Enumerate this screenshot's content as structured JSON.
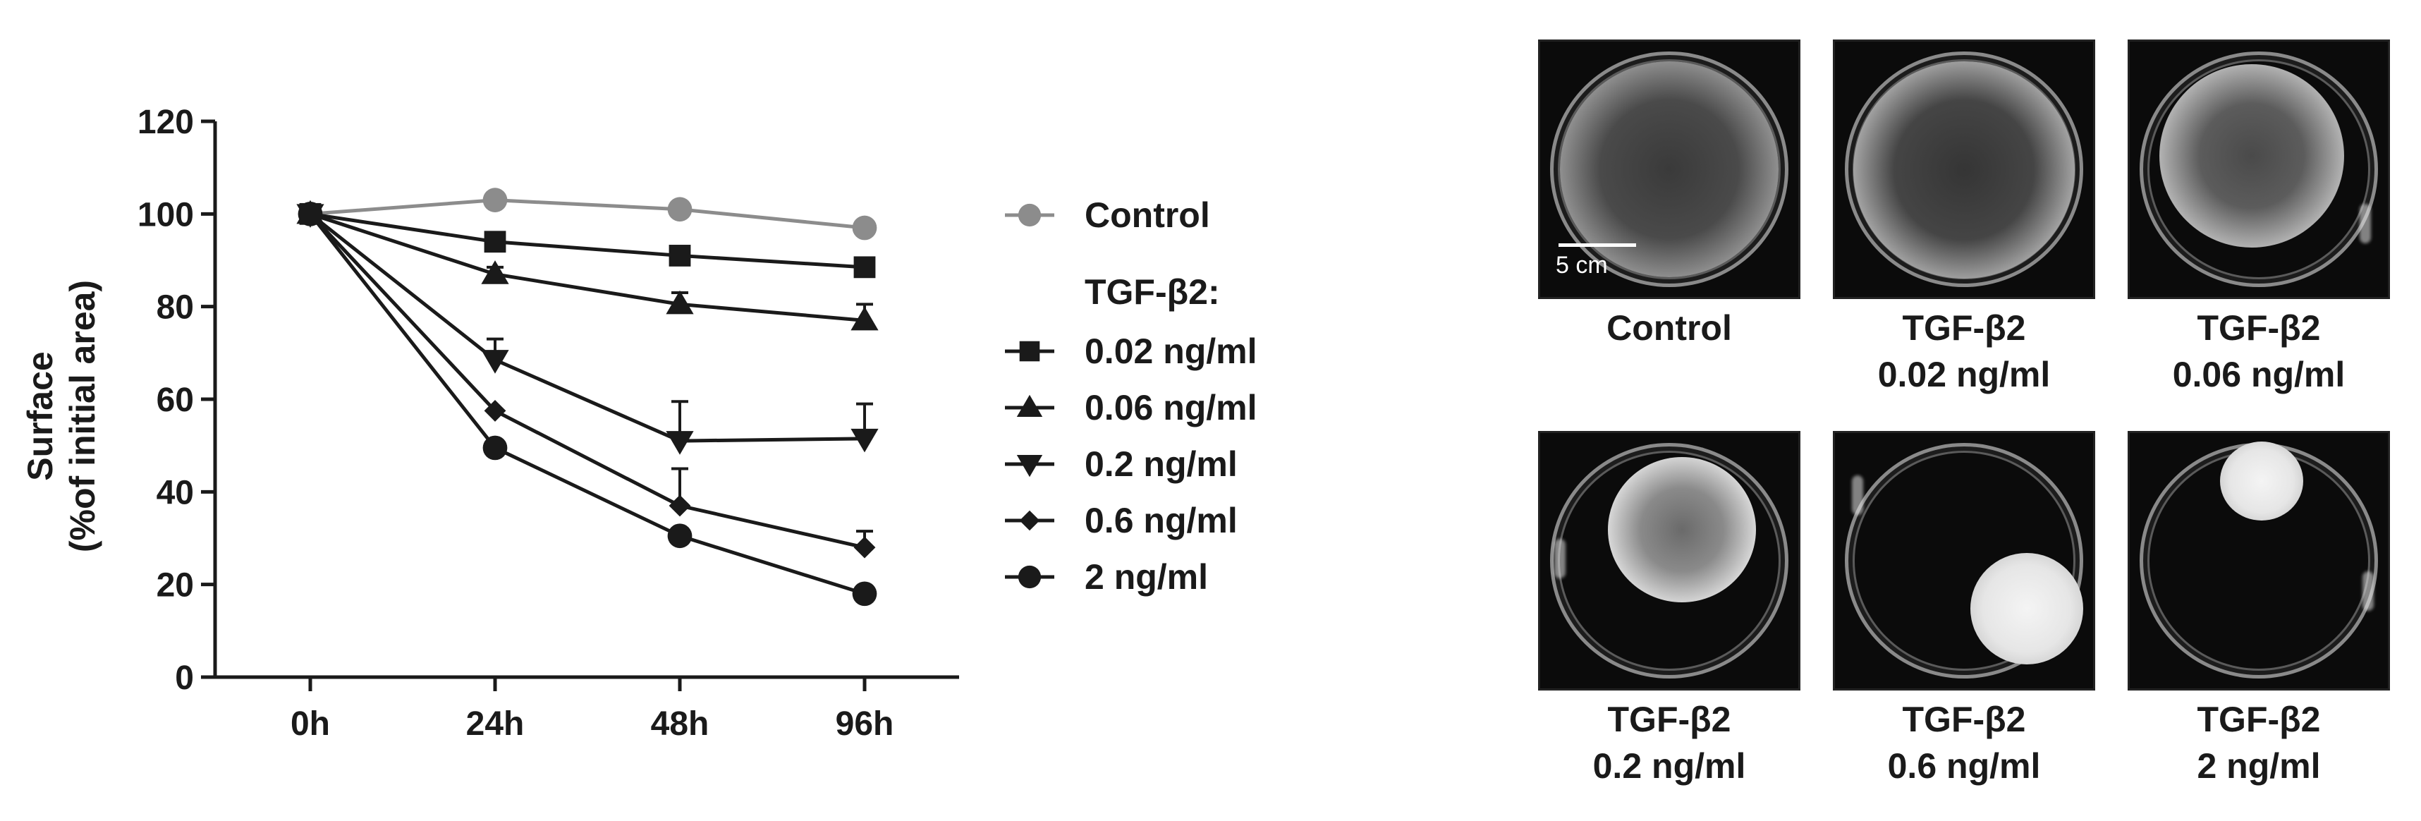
{
  "chart_data": {
    "type": "line",
    "ylabel_line1": "Surface",
    "ylabel_line2": "(%of initial area)",
    "xlabel": "",
    "categories": [
      "0h",
      "24h",
      "48h",
      "96h"
    ],
    "ylim": [
      0,
      120
    ],
    "yticks": [
      0,
      20,
      40,
      60,
      80,
      100,
      120
    ],
    "legend_group_label": "TGF-β2:",
    "legend_position": "right",
    "grid": false,
    "series": [
      {
        "name": "Control",
        "marker": "circle",
        "color": "#8c8c8c",
        "values": [
          100,
          103,
          101,
          97
        ],
        "err": [
          0,
          0.6,
          0.8,
          1.2
        ]
      },
      {
        "name": "0.02 ng/ml",
        "marker": "square",
        "color": "#1a1a1a",
        "values": [
          100,
          94,
          91,
          88.5
        ],
        "err": [
          0,
          0.8,
          1.2,
          1.5
        ]
      },
      {
        "name": "0.06 ng/ml",
        "marker": "triangle-up",
        "color": "#1a1a1a",
        "values": [
          100,
          87,
          80.5,
          77
        ],
        "err": [
          0,
          1.5,
          2.5,
          3.5
        ]
      },
      {
        "name": "0.2 ng/ml",
        "marker": "triangle-down",
        "color": "#1a1a1a",
        "values": [
          100,
          68.5,
          51,
          51.5
        ],
        "err": [
          0,
          4.5,
          8.5,
          7.5
        ]
      },
      {
        "name": "0.6 ng/ml",
        "marker": "diamond",
        "color": "#1a1a1a",
        "values": [
          100,
          57.5,
          37,
          28
        ],
        "err": [
          0,
          0,
          8,
          3.5
        ]
      },
      {
        "name": "2 ng/ml",
        "marker": "circle",
        "color": "#1a1a1a",
        "values": [
          100,
          49.5,
          30.5,
          18
        ],
        "err": [
          0,
          0,
          0,
          1.5
        ]
      }
    ]
  },
  "photos": {
    "scale_label": "5 cm",
    "panels": [
      {
        "line1": "Control",
        "line2": ""
      },
      {
        "line1": "TGF-β2",
        "line2": "0.02 ng/ml"
      },
      {
        "line1": "TGF-β2",
        "line2": "0.06 ng/ml"
      },
      {
        "line1": "TGF-β2",
        "line2": "0.2 ng/ml"
      },
      {
        "line1": "TGF-β2",
        "line2": "0.6 ng/ml"
      },
      {
        "line1": "TGF-β2",
        "line2": "2 ng/ml"
      }
    ]
  }
}
